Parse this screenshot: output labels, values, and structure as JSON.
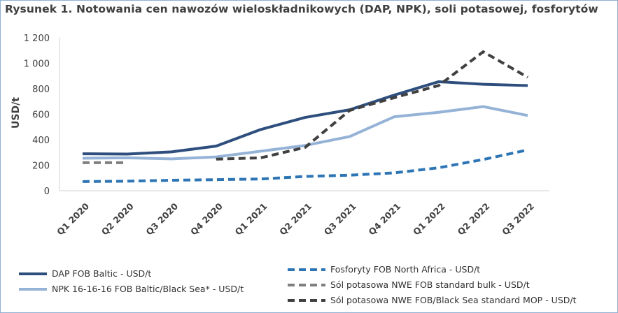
{
  "title": "Rysunek 1. Notowania cen nawozów wieloskładnikowych (DAP, NPK), soli potasowej, fosforytów",
  "chart_data": {
    "type": "line",
    "ylabel": "USD/t",
    "xlabel": "",
    "ylim": [
      0,
      1200
    ],
    "yticks": [
      0,
      200,
      400,
      600,
      800,
      1000,
      1200
    ],
    "ytick_labels": [
      "0",
      "200",
      "400",
      "600",
      "800",
      "1 000",
      "1 200"
    ],
    "grid": false,
    "categories": [
      "Q1 2020",
      "Q2 2020",
      "Q3 2020",
      "Q4 2020",
      "Q1 2021",
      "Q2 2021",
      "Q3 2021",
      "Q4 2021",
      "Q1 2022",
      "Q2 2022",
      "Q3 2022"
    ],
    "series": [
      {
        "name": "DAP FOB Baltic - USD/t",
        "color": "#2e4f7e",
        "dash": "solid",
        "values": [
          290,
          288,
          305,
          350,
          480,
          575,
          635,
          750,
          855,
          835,
          825
        ]
      },
      {
        "name": "NPK 16-16-16 FOB Baltic/Black Sea* - USD/t",
        "color": "#95b3d7",
        "dash": "solid",
        "values": [
          255,
          258,
          250,
          265,
          310,
          355,
          425,
          580,
          615,
          660,
          590
        ]
      },
      {
        "name": "Fosforyty FOB North Africa - USD/t",
        "color": "#2e75b6",
        "dash": "dashed",
        "values": [
          72,
          75,
          82,
          87,
          92,
          112,
          122,
          140,
          180,
          245,
          320
        ]
      },
      {
        "name": "Sól potasowa NWE FOB standard bulk - USD/t",
        "color": "#7f7f7f",
        "dash": "dashed",
        "values": [
          220,
          220,
          null,
          null,
          null,
          null,
          null,
          null,
          null,
          null,
          null
        ]
      },
      {
        "name": "Sól potasowa NWE FOB/Black Sea standard MOP - USD/t",
        "color": "#404040",
        "dash": "dashed",
        "values": [
          null,
          null,
          null,
          248,
          258,
          340,
          630,
          730,
          825,
          1090,
          890
        ]
      }
    ],
    "legend_position": "bottom"
  }
}
